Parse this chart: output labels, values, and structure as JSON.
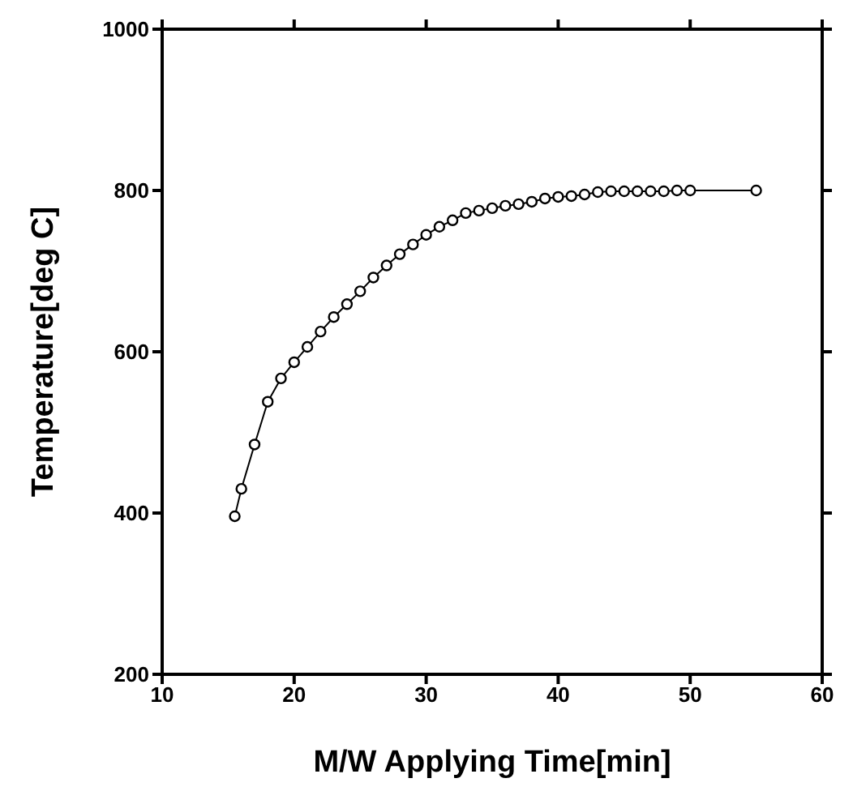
{
  "chart_data": {
    "type": "line",
    "xlabel": "M/W Applying Time[min]",
    "ylabel": "Temperature[deg C]",
    "x": [
      15.5,
      16,
      17,
      18,
      19,
      20,
      21,
      22,
      23,
      24,
      25,
      26,
      27,
      28,
      29,
      30,
      31,
      32,
      33,
      34,
      35,
      36,
      37,
      38,
      39,
      40,
      41,
      42,
      43,
      44,
      45,
      46,
      47,
      48,
      49,
      50,
      55
    ],
    "series": [
      {
        "color": "#000000",
        "values": [
          396,
          430,
          485,
          538,
          567,
          587,
          606,
          625,
          643,
          659,
          675,
          692,
          707,
          721,
          733,
          745,
          755,
          763,
          772,
          775,
          778,
          781,
          783,
          786,
          790,
          792,
          793,
          795,
          798,
          799,
          799,
          799,
          799,
          799,
          800,
          800,
          800
        ]
      }
    ],
    "xlim": [
      10,
      60
    ],
    "xticks": [
      10,
      20,
      30,
      40,
      50,
      60
    ],
    "ylim": [
      200,
      1000
    ],
    "yticks": [
      200,
      400,
      600,
      800,
      1000
    ],
    "marker": "circle",
    "line_style": "solid",
    "grid": false
  }
}
